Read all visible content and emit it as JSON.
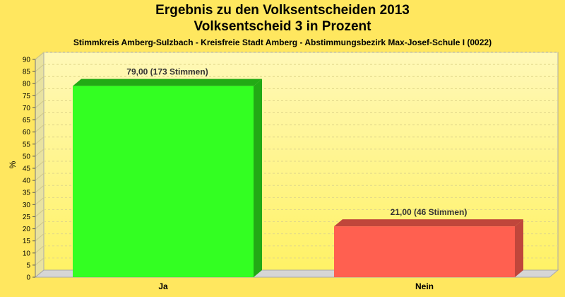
{
  "title": "Ergebnis zu den Volksentscheiden 2013",
  "subtitle": "Volksentscheid 3 in Prozent",
  "caption": "Stimmkreis Amberg-Sulzbach - Kreisfreie Stadt Amberg - Abstimmungsbezirk Max-Josef-Schule I (0022)",
  "chart_data": {
    "type": "bar",
    "categories": [
      "Ja",
      "Nein"
    ],
    "values": [
      79.0,
      21.0
    ],
    "data_labels": [
      "79,00 (173 Stimmen)",
      "21,00 (46 Stimmen)"
    ],
    "bar_colors": [
      "#33ff22",
      "#ff6050"
    ],
    "bar_dark_colors": [
      "#22aa15",
      "#c0463b"
    ],
    "ylabel": "%",
    "ylim": [
      0,
      90
    ],
    "ytick_step": 5,
    "grid": true
  },
  "colors": {
    "background": "#ffe75f",
    "plot_top": "#fff8b8",
    "plot_bottom": "#fff266"
  }
}
